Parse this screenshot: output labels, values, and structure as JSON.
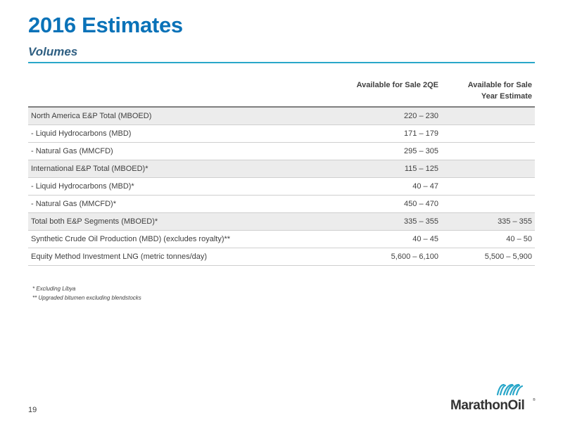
{
  "slide": {
    "title": "2016 Estimates",
    "subtitle": "Volumes",
    "page_number": "19"
  },
  "table": {
    "headers": [
      "",
      "Available for Sale 2QE",
      "Available for Sale\nYear Estimate"
    ],
    "rows": [
      {
        "label": "North America E&P Total (MBOED)",
        "a": "220 – 230",
        "b": "",
        "shaded": true
      },
      {
        "label": " - Liquid Hydrocarbons (MBD)",
        "a": "171 – 179",
        "b": "",
        "shaded": false
      },
      {
        "label": " - Natural Gas (MMCFD)",
        "a": "295 – 305",
        "b": "",
        "shaded": false
      },
      {
        "label": "International E&P Total (MBOED)*",
        "a": "115 – 125",
        "b": "",
        "shaded": true
      },
      {
        "label": " - Liquid Hydrocarbons (MBD)*",
        "a": "40 – 47",
        "b": "",
        "shaded": false
      },
      {
        "label": " - Natural Gas (MMCFD)*",
        "a": "450 – 470",
        "b": "",
        "shaded": false
      },
      {
        "label": "Total both E&P Segments (MBOED)*",
        "a": "335 – 355",
        "b": "335 – 355",
        "shaded": true
      },
      {
        "label": "Synthetic Crude Oil Production (MBD) (excludes royalty)**",
        "a": "40 – 45",
        "b": "40 – 50",
        "shaded": false
      },
      {
        "label": "Equity Method Investment LNG (metric tonnes/day)",
        "a": "5,600 – 6,100",
        "b": "5,500 – 5,900",
        "shaded": false
      }
    ]
  },
  "footnotes": [
    "* Excluding Libya",
    "** Upgraded bitumen excluding blendstocks"
  ],
  "logo": {
    "text": "MarathonOil",
    "registered": "®",
    "mark_icon": "marathon-wave-logo-icon"
  },
  "colors": {
    "title": "#0a72b8",
    "subtitle": "#2f5f82",
    "rule": "#2aa7c9",
    "row_shade": "#ececec",
    "logo_mark": "#2aa7c9"
  }
}
